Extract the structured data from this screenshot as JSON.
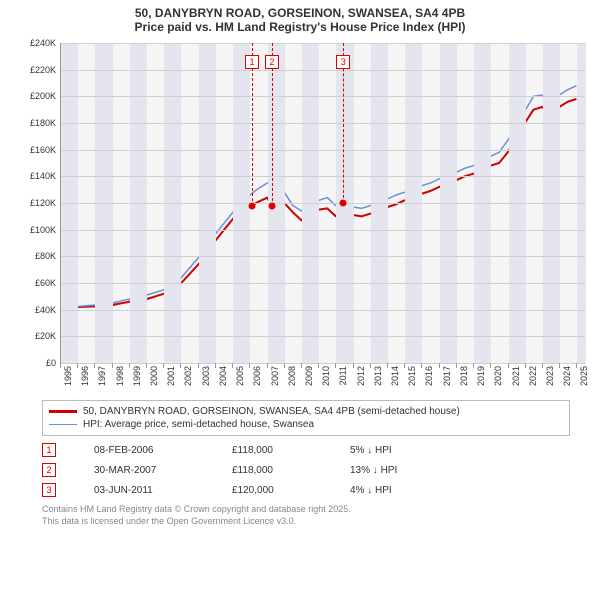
{
  "title": {
    "line1": "50, DANYBRYN ROAD, GORSEINON, SWANSEA, SA4 4PB",
    "line2": "Price paid vs. HM Land Registry's House Price Index (HPI)"
  },
  "chart": {
    "type": "line",
    "background_color": "#f5f5f5",
    "band_color": "#e5e5ef",
    "grid_color": "#d0d0d0",
    "axis_color": "#999999",
    "xlim": [
      1995,
      2025.5
    ],
    "ylim": [
      0,
      240000
    ],
    "y_ticks": [
      0,
      20000,
      40000,
      60000,
      80000,
      100000,
      120000,
      140000,
      160000,
      180000,
      200000,
      220000,
      240000
    ],
    "y_tick_labels": [
      "£0",
      "£20K",
      "£40K",
      "£60K",
      "£80K",
      "£100K",
      "£120K",
      "£140K",
      "£160K",
      "£180K",
      "£200K",
      "£220K",
      "£240K"
    ],
    "x_ticks": [
      1995,
      1996,
      1997,
      1998,
      1999,
      2000,
      2001,
      2002,
      2003,
      2004,
      2005,
      2006,
      2007,
      2008,
      2009,
      2010,
      2011,
      2012,
      2013,
      2014,
      2015,
      2016,
      2017,
      2018,
      2019,
      2020,
      2021,
      2022,
      2023,
      2024,
      2025
    ],
    "bands": [
      [
        1995,
        1996
      ],
      [
        1997,
        1998
      ],
      [
        1999,
        2000
      ],
      [
        2001,
        2002
      ],
      [
        2003,
        2004
      ],
      [
        2005,
        2006
      ],
      [
        2007,
        2008
      ],
      [
        2009,
        2010
      ],
      [
        2011,
        2012
      ],
      [
        2013,
        2014
      ],
      [
        2015,
        2016
      ],
      [
        2017,
        2018
      ],
      [
        2019,
        2020
      ],
      [
        2021,
        2022
      ],
      [
        2023,
        2024
      ],
      [
        2025,
        2025.5
      ]
    ],
    "series": [
      {
        "name": "price_paid",
        "color": "#d00000",
        "width": 2,
        "points": [
          [
            1995,
            42000
          ],
          [
            1996,
            42000
          ],
          [
            1997,
            42500
          ],
          [
            1998,
            43500
          ],
          [
            1999,
            46000
          ],
          [
            2000,
            48000
          ],
          [
            2001,
            52000
          ],
          [
            2002,
            60000
          ],
          [
            2003,
            74000
          ],
          [
            2004,
            92000
          ],
          [
            2005,
            108000
          ],
          [
            2005.5,
            112000
          ],
          [
            2006.1,
            118000
          ],
          [
            2006.5,
            121000
          ],
          [
            2007,
            124000
          ],
          [
            2007.25,
            118000
          ],
          [
            2007.5,
            123000
          ],
          [
            2008,
            120000
          ],
          [
            2008.5,
            113000
          ],
          [
            2009,
            107000
          ],
          [
            2009.5,
            112000
          ],
          [
            2010,
            115000
          ],
          [
            2010.5,
            116000
          ],
          [
            2011,
            110000
          ],
          [
            2011.4,
            120000
          ],
          [
            2011.8,
            113000
          ],
          [
            2012,
            111000
          ],
          [
            2012.5,
            110000
          ],
          [
            2013,
            112000
          ],
          [
            2013.5,
            114000
          ],
          [
            2014,
            117000
          ],
          [
            2014.5,
            119000
          ],
          [
            2015,
            122000
          ],
          [
            2015.5,
            123000
          ],
          [
            2016,
            127000
          ],
          [
            2016.5,
            129000
          ],
          [
            2017,
            132000
          ],
          [
            2017.5,
            134000
          ],
          [
            2018,
            137000
          ],
          [
            2018.5,
            140000
          ],
          [
            2019,
            142000
          ],
          [
            2019.5,
            144000
          ],
          [
            2020,
            148000
          ],
          [
            2020.5,
            150000
          ],
          [
            2021,
            158000
          ],
          [
            2021.5,
            168000
          ],
          [
            2022,
            180000
          ],
          [
            2022.5,
            190000
          ],
          [
            2023,
            192000
          ],
          [
            2023.5,
            187000
          ],
          [
            2024,
            192000
          ],
          [
            2024.5,
            196000
          ],
          [
            2025,
            198000
          ]
        ]
      },
      {
        "name": "hpi",
        "color": "#6a8fd8",
        "width": 1.5,
        "points": [
          [
            1995,
            42000
          ],
          [
            1996,
            42500
          ],
          [
            1997,
            43500
          ],
          [
            1998,
            45000
          ],
          [
            1999,
            48000
          ],
          [
            2000,
            51000
          ],
          [
            2001,
            55000
          ],
          [
            2002,
            64000
          ],
          [
            2003,
            79000
          ],
          [
            2004,
            97000
          ],
          [
            2005,
            113000
          ],
          [
            2005.5,
            118000
          ],
          [
            2006,
            126000
          ],
          [
            2006.5,
            131000
          ],
          [
            2007,
            135000
          ],
          [
            2007.5,
            134000
          ],
          [
            2008,
            128000
          ],
          [
            2008.5,
            118000
          ],
          [
            2009,
            114000
          ],
          [
            2009.5,
            119000
          ],
          [
            2010,
            122000
          ],
          [
            2010.5,
            124000
          ],
          [
            2011,
            118000
          ],
          [
            2011.5,
            121000
          ],
          [
            2012,
            117000
          ],
          [
            2012.5,
            116000
          ],
          [
            2013,
            118000
          ],
          [
            2013.5,
            120000
          ],
          [
            2014,
            123000
          ],
          [
            2014.5,
            126000
          ],
          [
            2015,
            128000
          ],
          [
            2015.5,
            129000
          ],
          [
            2016,
            133000
          ],
          [
            2016.5,
            135000
          ],
          [
            2017,
            138000
          ],
          [
            2017.5,
            140000
          ],
          [
            2018,
            143000
          ],
          [
            2018.5,
            146000
          ],
          [
            2019,
            148000
          ],
          [
            2019.5,
            151000
          ],
          [
            2020,
            155000
          ],
          [
            2020.5,
            158000
          ],
          [
            2021,
            167000
          ],
          [
            2021.5,
            177000
          ],
          [
            2022,
            189000
          ],
          [
            2022.5,
            200000
          ],
          [
            2023,
            201000
          ],
          [
            2023.5,
            196000
          ],
          [
            2024,
            201000
          ],
          [
            2024.5,
            205000
          ],
          [
            2025,
            208000
          ]
        ]
      }
    ],
    "markers": [
      {
        "n": "1",
        "x": 2006.1,
        "y": 118000,
        "date": "08-FEB-2006",
        "price": "£118,000",
        "diff": "5% ↓ HPI"
      },
      {
        "n": "2",
        "x": 2007.25,
        "y": 118000,
        "date": "30-MAR-2007",
        "price": "£118,000",
        "diff": "13% ↓ HPI"
      },
      {
        "n": "3",
        "x": 2011.4,
        "y": 120000,
        "date": "03-JUN-2011",
        "price": "£120,000",
        "diff": "4% ↓ HPI"
      }
    ]
  },
  "legend": {
    "items": [
      {
        "color": "#d00000",
        "width": 2.5,
        "label": "50, DANYBRYN ROAD, GORSEINON, SWANSEA, SA4 4PB (semi-detached house)"
      },
      {
        "color": "#6a8fd8",
        "width": 1.5,
        "label": "HPI: Average price, semi-detached house, Swansea"
      }
    ]
  },
  "footer": {
    "line1": "Contains HM Land Registry data © Crown copyright and database right 2025.",
    "line2": "This data is licensed under the Open Government Licence v3.0."
  }
}
